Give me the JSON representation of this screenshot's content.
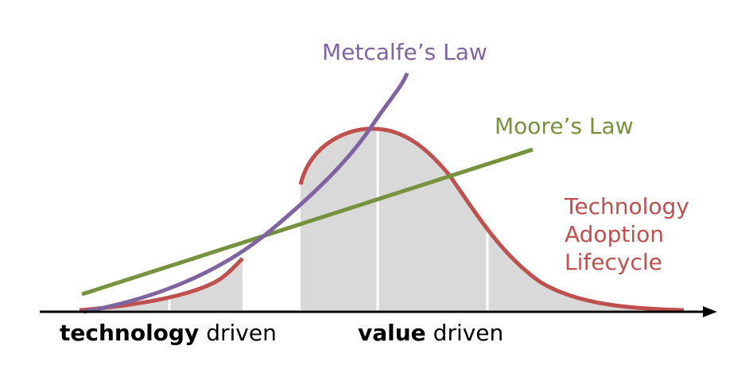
{
  "labels": {
    "metcalfe": "Metcalfe’s Law",
    "moore": "Moore’s Law",
    "adoption": [
      "Technology",
      "Adoption",
      "Lifecycle"
    ]
  },
  "axis": {
    "left": {
      "bold": "technology",
      "rest": "driven"
    },
    "right": {
      "bold": "value",
      "rest": "driven"
    }
  }
}
